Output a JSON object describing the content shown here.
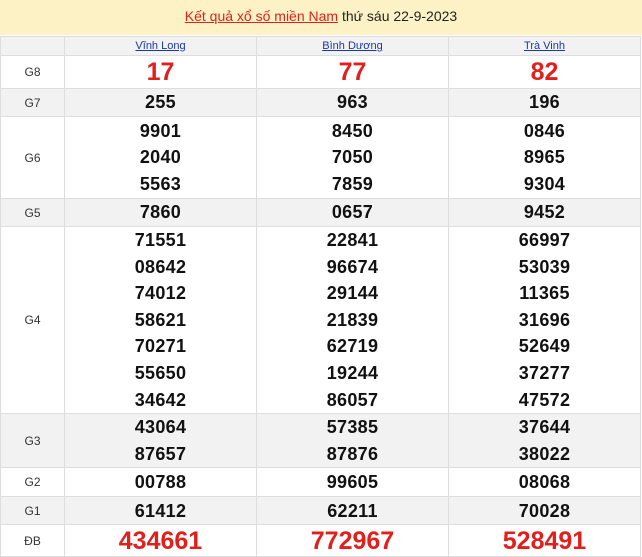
{
  "header": {
    "link_text": "Kết quả xổ số miền Nam",
    "date_text": "thứ sáu 22-9-2023"
  },
  "provinces": [
    "Vĩnh Long",
    "Bình Dương",
    "Trà Vinh"
  ],
  "accent_color": "#e0201c",
  "prizes": [
    {
      "label": "G8",
      "values": [
        [
          "17"
        ],
        [
          "77"
        ],
        [
          "82"
        ]
      ]
    },
    {
      "label": "G7",
      "values": [
        [
          "255"
        ],
        [
          "963"
        ],
        [
          "196"
        ]
      ]
    },
    {
      "label": "G6",
      "values": [
        [
          "9901",
          "2040",
          "5563"
        ],
        [
          "8450",
          "7050",
          "7859"
        ],
        [
          "0846",
          "8965",
          "9304"
        ]
      ]
    },
    {
      "label": "G5",
      "values": [
        [
          "7860"
        ],
        [
          "0657"
        ],
        [
          "9452"
        ]
      ]
    },
    {
      "label": "G4",
      "values": [
        [
          "71551",
          "08642",
          "74012",
          "58621",
          "70271",
          "55650",
          "34642"
        ],
        [
          "22841",
          "96674",
          "29144",
          "21839",
          "62719",
          "19244",
          "86057"
        ],
        [
          "66997",
          "53039",
          "11365",
          "31696",
          "52649",
          "37277",
          "47572"
        ]
      ]
    },
    {
      "label": "G3",
      "values": [
        [
          "43064",
          "87657"
        ],
        [
          "57385",
          "87876"
        ],
        [
          "37644",
          "38022"
        ]
      ]
    },
    {
      "label": "G2",
      "values": [
        [
          "00788"
        ],
        [
          "99605"
        ],
        [
          "08068"
        ]
      ]
    },
    {
      "label": "G1",
      "values": [
        [
          "61412"
        ],
        [
          "62211"
        ],
        [
          "70028"
        ]
      ]
    },
    {
      "label": "ĐB",
      "values": [
        [
          "434661"
        ],
        [
          "772967"
        ],
        [
          "528491"
        ]
      ]
    }
  ]
}
